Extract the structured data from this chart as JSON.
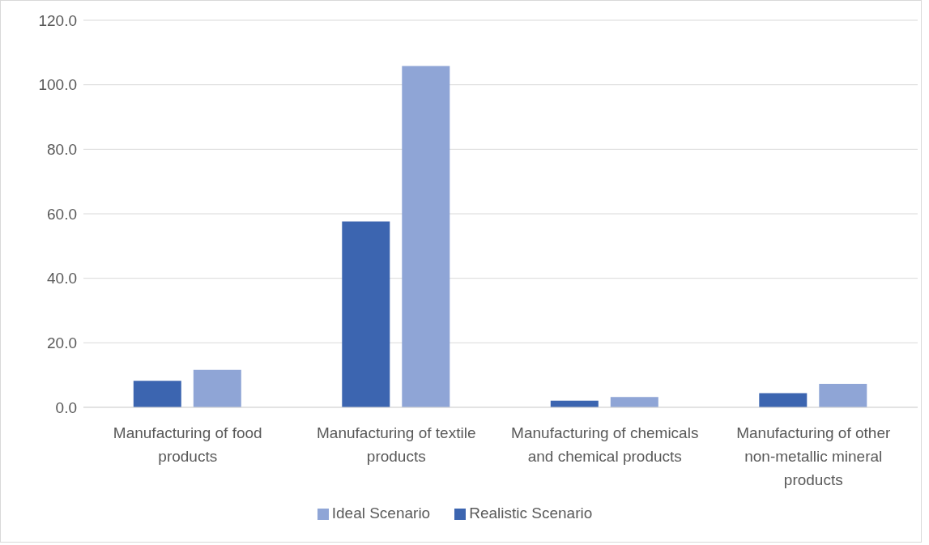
{
  "chart_data": {
    "type": "bar",
    "categories": [
      "Manufacturing of food products",
      "Manufacturing of textile products",
      "Manufacturing of chemicals and chemical products",
      "Manufacturing of other non-metallic mineral products"
    ],
    "series": [
      {
        "name": "Realistic Scenario",
        "color": "#3c65b0",
        "values": [
          8.2,
          57.6,
          2.1,
          4.4
        ]
      },
      {
        "name": "Ideal Scenario",
        "color": "#8fa5d6",
        "values": [
          11.6,
          105.8,
          3.2,
          7.3
        ]
      }
    ],
    "ylim": [
      0,
      120
    ],
    "yticks": [
      {
        "value": 0,
        "label": "0.0"
      },
      {
        "value": 20,
        "label": "20.0"
      },
      {
        "value": 40,
        "label": "40.0"
      },
      {
        "value": 60,
        "label": "60.0"
      },
      {
        "value": 80,
        "label": "80.0"
      },
      {
        "value": 100,
        "label": "100.0"
      },
      {
        "value": 120,
        "label": "120.0"
      }
    ],
    "grid": "y",
    "legend": "bottom"
  }
}
